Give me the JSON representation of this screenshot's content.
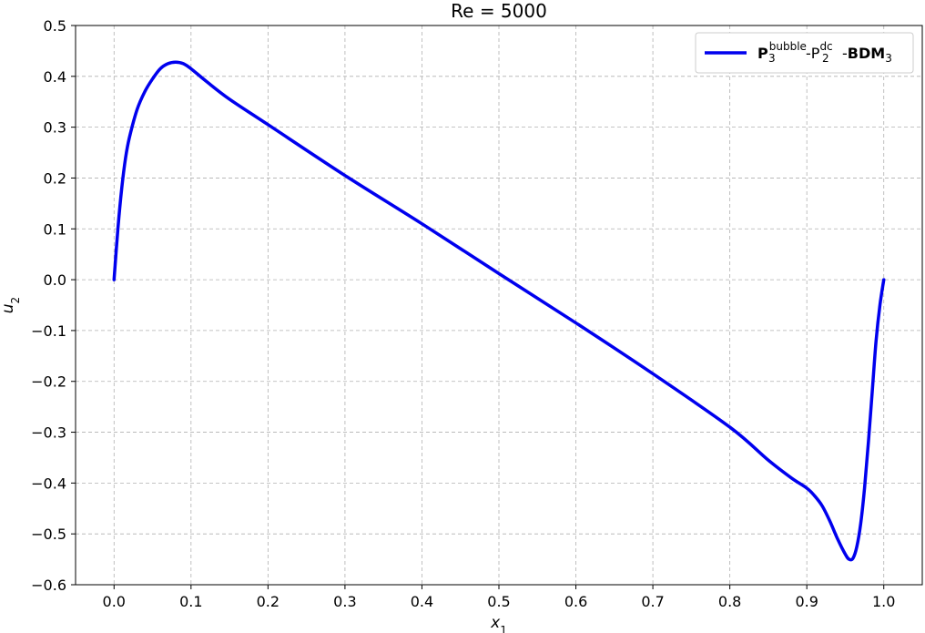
{
  "chart_data": {
    "type": "line",
    "title": "Re = 5000",
    "xlabel": {
      "var": "x",
      "sub": "1"
    },
    "ylabel": {
      "var": "u",
      "sub": "2"
    },
    "xlim": [
      -0.05,
      1.05
    ],
    "ylim": [
      -0.6,
      0.5
    ],
    "xticks": [
      0.0,
      0.1,
      0.2,
      0.3,
      0.4,
      0.5,
      0.6,
      0.7,
      0.8,
      0.9,
      1.0
    ],
    "xtick_labels": [
      "0.0",
      "0.1",
      "0.2",
      "0.3",
      "0.4",
      "0.5",
      "0.6",
      "0.7",
      "0.8",
      "0.9",
      "1.0"
    ],
    "yticks": [
      0.5,
      0.4,
      0.3,
      0.2,
      0.1,
      0.0,
      -0.1,
      -0.2,
      -0.3,
      -0.4,
      -0.5,
      -0.6
    ],
    "ytick_labels": [
      "0.5",
      "0.4",
      "0.3",
      "0.2",
      "0.1",
      "0.0",
      "−0.1",
      "−0.2",
      "−0.3",
      "−0.4",
      "−0.5",
      "−0.6"
    ],
    "grid": true,
    "legend_position": "top-right",
    "series": [
      {
        "name": "P3bubble-P2dc-BDM3",
        "legend_parts": {
          "p_base": "P",
          "p_sub": "3",
          "p_sup": "bubble",
          "sep1": "-",
          "q_base": "P",
          "q_sub": "2",
          "q_sup": "dc",
          "sep2": "-",
          "bdm_base": "BDM",
          "bdm_sub": "3"
        },
        "color": "#0000ee",
        "x": [
          0.0,
          0.005,
          0.01,
          0.015,
          0.02,
          0.03,
          0.04,
          0.05,
          0.06,
          0.07,
          0.08,
          0.09,
          0.1,
          0.12,
          0.15,
          0.2,
          0.3,
          0.4,
          0.5,
          0.6,
          0.7,
          0.8,
          0.85,
          0.88,
          0.9,
          0.91,
          0.92,
          0.93,
          0.94,
          0.95,
          0.955,
          0.96,
          0.965,
          0.97,
          0.975,
          0.98,
          0.985,
          0.99,
          0.995,
          1.0
        ],
        "y": [
          0.0,
          0.1,
          0.18,
          0.24,
          0.28,
          0.335,
          0.37,
          0.395,
          0.415,
          0.425,
          0.428,
          0.425,
          0.415,
          0.39,
          0.355,
          0.305,
          0.205,
          0.11,
          0.012,
          -0.085,
          -0.185,
          -0.29,
          -0.355,
          -0.39,
          -0.41,
          -0.425,
          -0.445,
          -0.475,
          -0.51,
          -0.54,
          -0.55,
          -0.548,
          -0.525,
          -0.48,
          -0.41,
          -0.32,
          -0.22,
          -0.12,
          -0.05,
          0.0
        ]
      }
    ]
  }
}
